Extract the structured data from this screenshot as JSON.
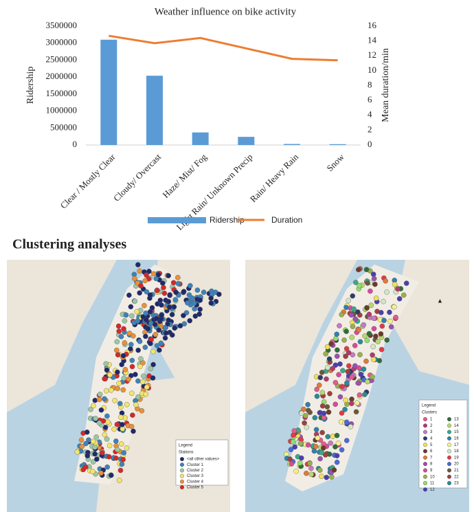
{
  "chart_data": {
    "type": "bar-line",
    "title": "Weather influence on bike activity",
    "y_label": "Ridership",
    "y2_label": "Mean duration/min",
    "categories": [
      "Clear / Mostly Clear",
      "Cloudy/ Overcast",
      "Haze/ Mist/ Fog",
      "Light Rain/ Unknown Precip",
      "Rain/ Heavy Rain",
      "Snow"
    ],
    "series": [
      {
        "name": "Ridership",
        "type": "bar",
        "color": "#5b9bd5",
        "values": [
          3100000,
          2040000,
          370000,
          240000,
          30000,
          25000
        ]
      },
      {
        "name": "Duration",
        "type": "line",
        "axis": "y2",
        "color": "#ed7d31",
        "values": [
          14.7,
          13.7,
          14.4,
          13.0,
          11.6,
          11.4
        ]
      }
    ],
    "ylim": [
      0,
      3500000
    ],
    "yticks": [
      0,
      500000,
      1000000,
      1500000,
      2000000,
      2500000,
      3000000,
      3500000
    ],
    "y2lim": [
      0,
      16
    ],
    "y2ticks": [
      0,
      2,
      4,
      6,
      8,
      10,
      12,
      14,
      16
    ],
    "legend": "bottom"
  },
  "section_title": "Clustering analyses",
  "maps": [
    {
      "legend_title": "Legend",
      "legend_subtitle": "Stations",
      "items": [
        {
          "label": "<all other values>",
          "color": "#1f2a6b"
        },
        {
          "label": "Cluster 1",
          "color": "#3d83b8"
        },
        {
          "label": "Cluster 2",
          "color": "#9cc7a6"
        },
        {
          "label": "Cluster 3",
          "color": "#f3e56c"
        },
        {
          "label": "Cluster 4",
          "color": "#e8913a"
        },
        {
          "label": "Cluster 5",
          "color": "#d6282b"
        }
      ]
    },
    {
      "legend_title": "Legend",
      "legend_subtitle": "Clusters",
      "items": [
        {
          "label": "1",
          "color": "#e05d8c"
        },
        {
          "label": "2",
          "color": "#b23a6e"
        },
        {
          "label": "3",
          "color": "#c77ac2"
        },
        {
          "label": "4",
          "color": "#2b3d6e"
        },
        {
          "label": "5",
          "color": "#f1e05a"
        },
        {
          "label": "6",
          "color": "#6b3b2a"
        },
        {
          "label": "7",
          "color": "#e07a3a"
        },
        {
          "label": "8",
          "color": "#9e4fb0"
        },
        {
          "label": "9",
          "color": "#d94a9a"
        },
        {
          "label": "10",
          "color": "#9ab04a"
        },
        {
          "label": "11",
          "color": "#8fe06a"
        },
        {
          "label": "12",
          "color": "#4a3fb0"
        },
        {
          "label": "13",
          "color": "#2f6e3a"
        },
        {
          "label": "14",
          "color": "#b8d870"
        },
        {
          "label": "15",
          "color": "#3aa88a"
        },
        {
          "label": "16",
          "color": "#2f7fb0"
        },
        {
          "label": "17",
          "color": "#f4f08a"
        },
        {
          "label": "18",
          "color": "#cfe8c8"
        },
        {
          "label": "19",
          "color": "#e03a4a"
        },
        {
          "label": "20",
          "color": "#4a6ad8"
        },
        {
          "label": "21",
          "color": "#6a5a3a"
        },
        {
          "label": "22",
          "color": "#a04040"
        },
        {
          "label": "23",
          "color": "#2a8a9a"
        }
      ]
    }
  ]
}
